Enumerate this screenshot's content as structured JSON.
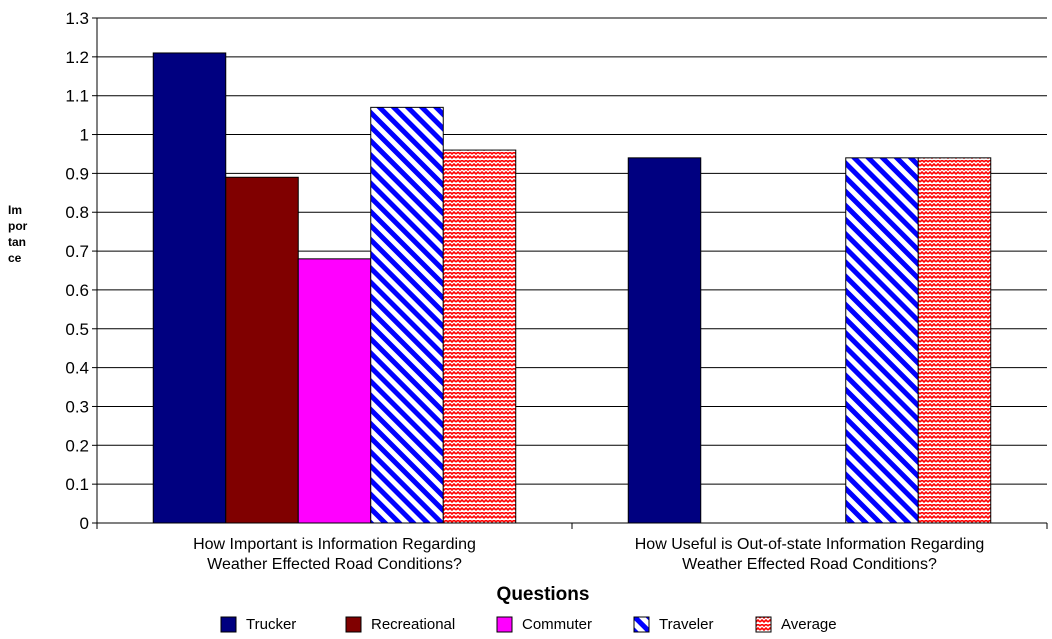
{
  "chart_data": {
    "type": "bar",
    "xlabel": "Questions",
    "ylabel_lines": [
      "Im",
      "por",
      "tan",
      "ce"
    ],
    "ylim": [
      0,
      1.3
    ],
    "yticks": [
      "0",
      "0.1",
      "0.2",
      "0.3",
      "0.4",
      "0.5",
      "0.6",
      "0.7",
      "0.8",
      "0.9",
      "1",
      "1.1",
      "1.2",
      "1.3"
    ],
    "categories": [
      [
        "How Important is Information Regarding",
        "Weather Effected Road Conditions?"
      ],
      [
        "How Useful is Out-of-state Information Regarding",
        "Weather Effected Road Conditions?"
      ]
    ],
    "series": [
      {
        "name": "Trucker",
        "values": [
          1.21,
          0.94
        ],
        "color": "#000080",
        "pattern": "solid"
      },
      {
        "name": "Recreational",
        "values": [
          0.89,
          0
        ],
        "color": "#800000",
        "pattern": "solid"
      },
      {
        "name": "Commuter",
        "values": [
          0.68,
          0
        ],
        "color": "#ff00ff",
        "pattern": "solid"
      },
      {
        "name": "Traveler",
        "values": [
          1.07,
          0.94
        ],
        "color": "#0000ff",
        "pattern": "diagonal-stripes"
      },
      {
        "name": "Average",
        "values": [
          0.96,
          0.94
        ],
        "color": "#ff0000",
        "pattern": "wave"
      }
    ],
    "grid": true,
    "legend_position": "bottom"
  }
}
